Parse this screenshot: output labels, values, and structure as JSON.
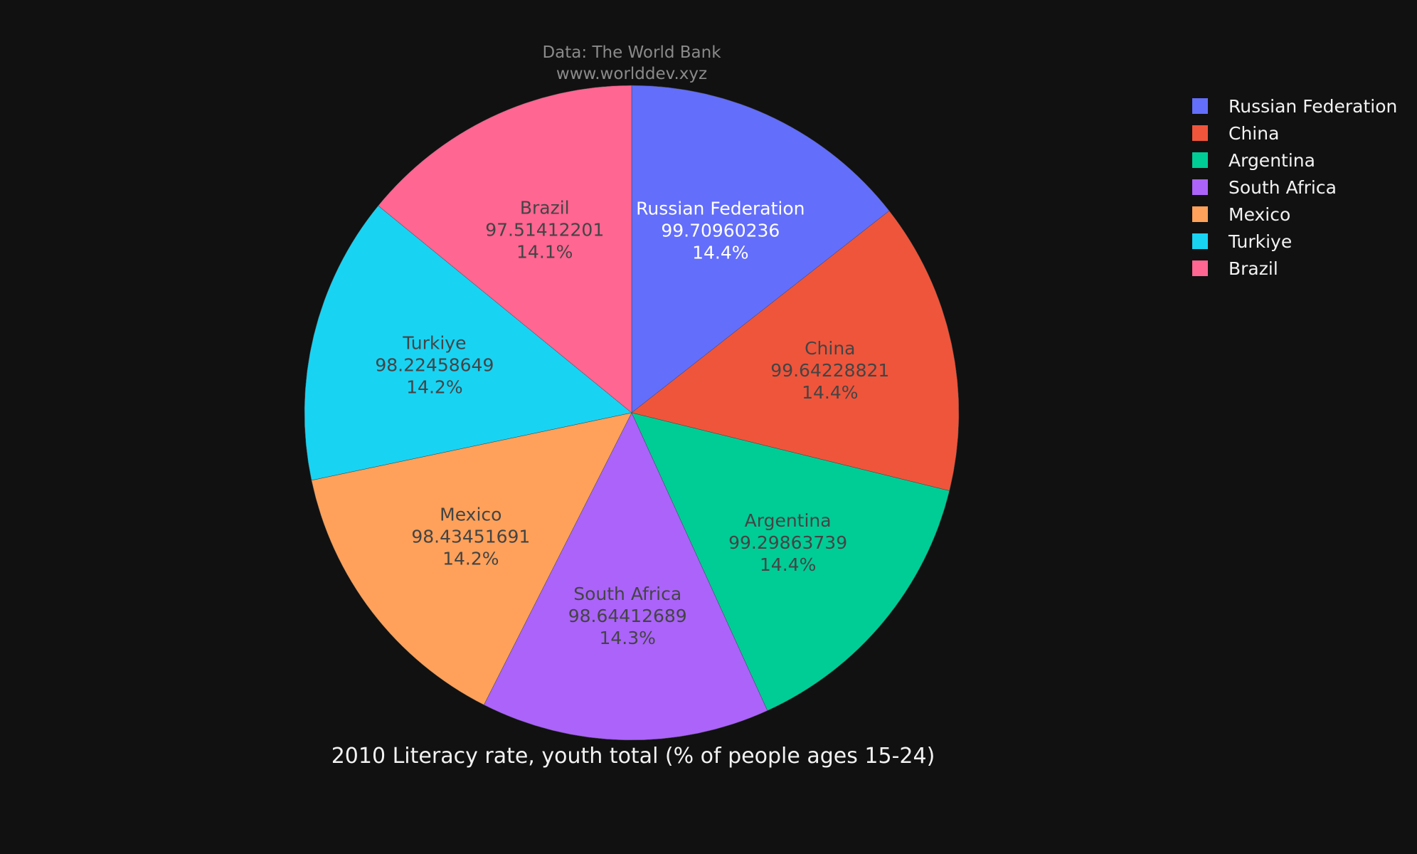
{
  "source": {
    "line1": "Data: The World Bank",
    "line2": "www.worlddev.xyz"
  },
  "chart_data": {
    "type": "pie",
    "title": "2010 Literacy rate, youth total (% of people ages 15-24)",
    "legend_position": "top-right",
    "slices": [
      {
        "label": "Russian Federation",
        "value": 99.70960236,
        "value_text": "99.70960236",
        "percent_text": "14.4%",
        "color": "#636efa",
        "text_color": "#ffffff"
      },
      {
        "label": "China",
        "value": 99.64228821,
        "value_text": "99.64228821",
        "percent_text": "14.4%",
        "color": "#ef553b",
        "text_color": "#444444"
      },
      {
        "label": "Argentina",
        "value": 99.29863739,
        "value_text": "99.29863739",
        "percent_text": "14.4%",
        "color": "#00cc96",
        "text_color": "#444444"
      },
      {
        "label": "South Africa",
        "value": 98.64412689,
        "value_text": "98.64412689",
        "percent_text": "14.3%",
        "color": "#ab63fa",
        "text_color": "#444444"
      },
      {
        "label": "Mexico",
        "value": 98.43451691,
        "value_text": "98.43451691",
        "percent_text": "14.2%",
        "color": "#ffa15a",
        "text_color": "#444444"
      },
      {
        "label": "Turkiye",
        "value": 98.22458649,
        "value_text": "98.22458649",
        "percent_text": "14.2%",
        "color": "#19d3f3",
        "text_color": "#444444"
      },
      {
        "label": "Brazil",
        "value": 97.51412201,
        "value_text": "97.51412201",
        "percent_text": "14.1%",
        "color": "#ff6692",
        "text_color": "#444444"
      }
    ]
  }
}
